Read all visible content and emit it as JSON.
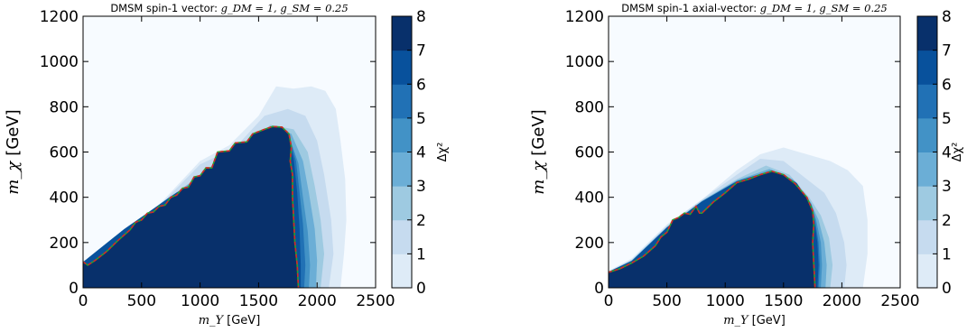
{
  "colormap": [
    "#f7fbff",
    "#deebf7",
    "#c6dbef",
    "#9ecae1",
    "#6baed6",
    "#4292c6",
    "#2171b5",
    "#08519c",
    "#08306b"
  ],
  "contour_colors": {
    "boundary_red": "#d62728",
    "boundary_green": "#2ca02c"
  },
  "chart_data": [
    {
      "type": "heatmap",
      "title": "DMSM spin-1 vector: g_DM = 1, g_SM = 0.25",
      "title_prefix": "DMSM spin-1 vector: ",
      "title_math": "g_DM = 1, g_SM = 0.25",
      "xlabel_math": "m_Y",
      "xlabel_unit": "[GeV]",
      "ylabel_math": "m_χ",
      "ylabel_unit": "[GeV]",
      "colorbar_label": "Δχ²",
      "xlim": [
        0,
        2500
      ],
      "ylim": [
        0,
        1200
      ],
      "xticks": [
        "0",
        "500",
        "1000",
        "1500",
        "2000",
        "2500"
      ],
      "yticks": [
        "0",
        "200",
        "400",
        "600",
        "800",
        "1000",
        "1200"
      ],
      "colorbar_ticks": [
        "0",
        "1",
        "2",
        "3",
        "4",
        "5",
        "6",
        "7",
        "8"
      ],
      "clim": [
        0,
        8
      ],
      "contours": [
        {
          "level": 1,
          "points": [
            [
              0,
              100
            ],
            [
              80,
              115
            ],
            [
              250,
              190
            ],
            [
              600,
              340
            ],
            [
              1000,
              560
            ],
            [
              1250,
              630
            ],
            [
              1500,
              760
            ],
            [
              1650,
              890
            ],
            [
              1800,
              880
            ],
            [
              1950,
              890
            ],
            [
              2070,
              870
            ],
            [
              2160,
              790
            ],
            [
              2200,
              650
            ],
            [
              2240,
              480
            ],
            [
              2250,
              300
            ],
            [
              2230,
              150
            ],
            [
              2200,
              0
            ]
          ]
        },
        {
          "level": 2,
          "points": [
            [
              0,
              105
            ],
            [
              250,
              195
            ],
            [
              600,
              335
            ],
            [
              1000,
              545
            ],
            [
              1300,
              620
            ],
            [
              1550,
              760
            ],
            [
              1750,
              790
            ],
            [
              1900,
              760
            ],
            [
              2000,
              650
            ],
            [
              2060,
              500
            ],
            [
              2120,
              300
            ],
            [
              2140,
              150
            ],
            [
              2100,
              0
            ]
          ]
        },
        {
          "level": 3,
          "points": [
            [
              0,
              108
            ],
            [
              300,
              230
            ],
            [
              700,
              380
            ],
            [
              1100,
              540
            ],
            [
              1400,
              620
            ],
            [
              1600,
              720
            ],
            [
              1800,
              700
            ],
            [
              1920,
              600
            ],
            [
              1980,
              450
            ],
            [
              2030,
              300
            ],
            [
              2060,
              150
            ],
            [
              2030,
              0
            ]
          ]
        },
        {
          "level": 4,
          "points": [
            [
              0,
              110
            ],
            [
              300,
              235
            ],
            [
              700,
              385
            ],
            [
              1100,
              530
            ],
            [
              1450,
              630
            ],
            [
              1620,
              715
            ],
            [
              1780,
              680
            ],
            [
              1880,
              560
            ],
            [
              1930,
              420
            ],
            [
              1980,
              260
            ],
            [
              2000,
              120
            ],
            [
              1990,
              0
            ]
          ]
        },
        {
          "level": 5,
          "points": [
            [
              0,
              112
            ],
            [
              350,
              255
            ],
            [
              750,
              405
            ],
            [
              1150,
              530
            ],
            [
              1500,
              660
            ],
            [
              1640,
              710
            ],
            [
              1760,
              670
            ],
            [
              1840,
              550
            ],
            [
              1880,
              400
            ],
            [
              1920,
              250
            ],
            [
              1940,
              100
            ],
            [
              1930,
              0
            ]
          ]
        },
        {
          "level": 6,
          "points": [
            [
              0,
              113
            ],
            [
              350,
              258
            ],
            [
              800,
              420
            ],
            [
              1200,
              530
            ],
            [
              1550,
              690
            ],
            [
              1660,
              712
            ],
            [
              1750,
              690
            ],
            [
              1820,
              560
            ],
            [
              1850,
              420
            ],
            [
              1880,
              280
            ],
            [
              1900,
              100
            ],
            [
              1890,
              0
            ]
          ]
        },
        {
          "level": 7,
          "points": [
            [
              0,
              114
            ],
            [
              350,
              259
            ],
            [
              800,
              421
            ],
            [
              1200,
              531
            ],
            [
              1560,
              695
            ],
            [
              1660,
              713
            ],
            [
              1740,
              690
            ],
            [
              1800,
              570
            ],
            [
              1830,
              420
            ],
            [
              1850,
              260
            ],
            [
              1860,
              100
            ],
            [
              1860,
              0
            ]
          ]
        },
        {
          "level": 8,
          "points": [
            [
              0,
              115
            ],
            [
              40,
              100
            ],
            [
              100,
              120
            ],
            [
              200,
              160
            ],
            [
              300,
              210
            ],
            [
              400,
              255
            ],
            [
              450,
              290
            ],
            [
              500,
              300
            ],
            [
              550,
              330
            ],
            [
              600,
              335
            ],
            [
              650,
              360
            ],
            [
              700,
              365
            ],
            [
              750,
              400
            ],
            [
              800,
              410
            ],
            [
              850,
              440
            ],
            [
              900,
              445
            ],
            [
              950,
              490
            ],
            [
              1000,
              495
            ],
            [
              1050,
              530
            ],
            [
              1100,
              530
            ],
            [
              1150,
              600
            ],
            [
              1250,
              605
            ],
            [
              1300,
              640
            ],
            [
              1400,
              645
            ],
            [
              1450,
              680
            ],
            [
              1550,
              700
            ],
            [
              1620,
              713
            ],
            [
              1700,
              710
            ],
            [
              1760,
              680
            ],
            [
              1780,
              620
            ],
            [
              1770,
              560
            ],
            [
              1790,
              500
            ],
            [
              1790,
              400
            ],
            [
              1800,
              300
            ],
            [
              1810,
              200
            ],
            [
              1830,
              100
            ],
            [
              1840,
              0
            ]
          ]
        }
      ]
    },
    {
      "type": "heatmap",
      "title": "DMSM spin-1 axial-vector: g_DM = 1, g_SM = 0.25",
      "title_prefix": "DMSM spin-1 axial-vector: ",
      "title_math": "g_DM = 1, g_SM = 0.25",
      "xlabel_math": "m_Y",
      "xlabel_unit": "[GeV]",
      "ylabel_math": "m_χ",
      "ylabel_unit": "[GeV]",
      "colorbar_label": "Δχ²",
      "xlim": [
        0,
        2500
      ],
      "ylim": [
        0,
        1200
      ],
      "xticks": [
        "0",
        "500",
        "1000",
        "1500",
        "2000",
        "2500"
      ],
      "yticks": [
        "0",
        "200",
        "400",
        "600",
        "800",
        "1000",
        "1200"
      ],
      "colorbar_ticks": [
        "0",
        "1",
        "2",
        "3",
        "4",
        "5",
        "6",
        "7",
        "8"
      ],
      "clim": [
        0,
        8
      ],
      "contours": [
        {
          "level": 1,
          "points": [
            [
              0,
              75
            ],
            [
              200,
              130
            ],
            [
              500,
              280
            ],
            [
              800,
              390
            ],
            [
              1100,
              520
            ],
            [
              1300,
              590
            ],
            [
              1500,
              620
            ],
            [
              1700,
              590
            ],
            [
              1900,
              560
            ],
            [
              2050,
              520
            ],
            [
              2180,
              450
            ],
            [
              2220,
              300
            ],
            [
              2220,
              150
            ],
            [
              2180,
              0
            ]
          ]
        },
        {
          "level": 2,
          "points": [
            [
              0,
              72
            ],
            [
              200,
              125
            ],
            [
              500,
              275
            ],
            [
              800,
              390
            ],
            [
              1100,
              500
            ],
            [
              1300,
              570
            ],
            [
              1500,
              560
            ],
            [
              1700,
              480
            ],
            [
              1850,
              420
            ],
            [
              1950,
              330
            ],
            [
              2020,
              200
            ],
            [
              2040,
              100
            ],
            [
              2020,
              0
            ]
          ]
        },
        {
          "level": 3,
          "points": [
            [
              0,
              71
            ],
            [
              200,
              122
            ],
            [
              500,
              270
            ],
            [
              800,
              385
            ],
            [
              1100,
              480
            ],
            [
              1350,
              540
            ],
            [
              1550,
              500
            ],
            [
              1720,
              400
            ],
            [
              1820,
              320
            ],
            [
              1890,
              220
            ],
            [
              1920,
              100
            ],
            [
              1900,
              0
            ]
          ]
        },
        {
          "level": 4,
          "points": [
            [
              0,
              70
            ],
            [
              200,
              120
            ],
            [
              500,
              268
            ],
            [
              800,
              383
            ],
            [
              1100,
              475
            ],
            [
              1380,
              525
            ],
            [
              1580,
              480
            ],
            [
              1730,
              380
            ],
            [
              1800,
              300
            ],
            [
              1850,
              200
            ],
            [
              1870,
              100
            ],
            [
              1860,
              0
            ]
          ]
        },
        {
          "level": 5,
          "points": [
            [
              0,
              70
            ],
            [
              200,
              120
            ],
            [
              500,
              267
            ],
            [
              800,
              382
            ],
            [
              1100,
              472
            ],
            [
              1400,
              520
            ],
            [
              1600,
              470
            ],
            [
              1740,
              370
            ],
            [
              1780,
              300
            ],
            [
              1820,
              200
            ],
            [
              1830,
              100
            ],
            [
              1820,
              0
            ]
          ]
        },
        {
          "level": 6,
          "points": [
            [
              0,
              70
            ],
            [
              200,
              119
            ],
            [
              500,
              266
            ],
            [
              800,
              381
            ],
            [
              1100,
              471
            ],
            [
              1400,
              518
            ],
            [
              1610,
              465
            ],
            [
              1740,
              365
            ],
            [
              1770,
              300
            ],
            [
              1800,
              200
            ],
            [
              1810,
              100
            ],
            [
              1800,
              0
            ]
          ]
        },
        {
          "level": 7,
          "points": [
            [
              0,
              70
            ],
            [
              200,
              119
            ],
            [
              500,
              266
            ],
            [
              800,
              381
            ],
            [
              1100,
              470
            ],
            [
              1400,
              517
            ],
            [
              1615,
              462
            ],
            [
              1740,
              362
            ],
            [
              1765,
              300
            ],
            [
              1790,
              200
            ],
            [
              1800,
              100
            ],
            [
              1790,
              0
            ]
          ]
        },
        {
          "level": 8,
          "points": [
            [
              0,
              68
            ],
            [
              100,
              85
            ],
            [
              200,
              110
            ],
            [
              300,
              140
            ],
            [
              400,
              185
            ],
            [
              450,
              225
            ],
            [
              500,
              245
            ],
            [
              550,
              300
            ],
            [
              600,
              310
            ],
            [
              650,
              330
            ],
            [
              700,
              325
            ],
            [
              750,
              360
            ],
            [
              780,
              330
            ],
            [
              800,
              330
            ],
            [
              850,
              355
            ],
            [
              900,
              380
            ],
            [
              1000,
              420
            ],
            [
              1100,
              465
            ],
            [
              1200,
              480
            ],
            [
              1300,
              500
            ],
            [
              1400,
              515
            ],
            [
              1500,
              500
            ],
            [
              1600,
              460
            ],
            [
              1700,
              400
            ],
            [
              1750,
              340
            ],
            [
              1760,
              280
            ],
            [
              1750,
              200
            ],
            [
              1760,
              100
            ],
            [
              1770,
              0
            ]
          ]
        }
      ]
    }
  ]
}
